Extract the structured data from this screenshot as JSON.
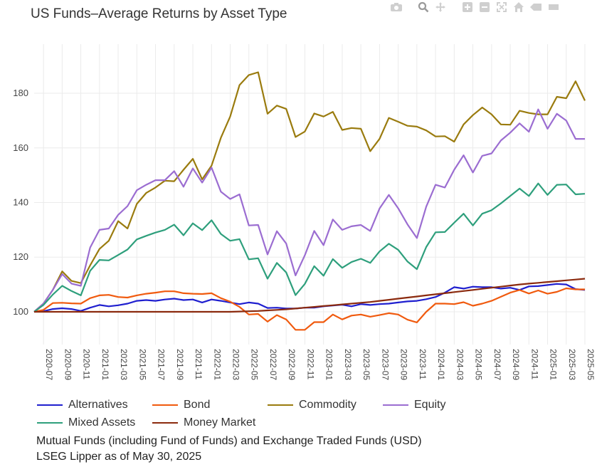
{
  "title": "US Funds–Average Returns by Asset Type",
  "modebar": {
    "icons": [
      "camera-icon",
      "zoom-icon",
      "pan-icon",
      "zoom-in-icon",
      "zoom-out-icon",
      "autoscale-icon",
      "home-icon",
      "spike-lines-icon",
      "hover-closest-icon",
      "hover-compare-icon"
    ]
  },
  "footer": {
    "line1": "Mutual Funds (including Fund of Funds) and Exchange Traded Funds (USD)",
    "line2": "LSEG Lipper as of May 30, 2025"
  },
  "chart_data": {
    "type": "line",
    "title": "US Funds–Average Returns by Asset Type",
    "xlabel": "",
    "ylabel": "",
    "ylim": [
      88,
      198
    ],
    "yticks": [
      100,
      120,
      140,
      160,
      180
    ],
    "grid": true,
    "legend_position": "bottom",
    "x": [
      "2020-06",
      "2020-07",
      "2020-08",
      "2020-09",
      "2020-10",
      "2020-11",
      "2020-12",
      "2021-01",
      "2021-02",
      "2021-03",
      "2021-04",
      "2021-05",
      "2021-06",
      "2021-07",
      "2021-08",
      "2021-09",
      "2021-10",
      "2021-11",
      "2021-12",
      "2022-01",
      "2022-02",
      "2022-03",
      "2022-04",
      "2022-05",
      "2022-06",
      "2022-07",
      "2022-08",
      "2022-09",
      "2022-10",
      "2022-11",
      "2022-12",
      "2023-01",
      "2023-02",
      "2023-03",
      "2023-04",
      "2023-05",
      "2023-06",
      "2023-07",
      "2023-08",
      "2023-09",
      "2023-10",
      "2023-11",
      "2023-12",
      "2024-01",
      "2024-02",
      "2024-03",
      "2024-04",
      "2024-05",
      "2024-06",
      "2024-07",
      "2024-08",
      "2024-09",
      "2024-10",
      "2024-11",
      "2024-12",
      "2025-01",
      "2025-02",
      "2025-03",
      "2025-04",
      "2025-05"
    ],
    "xticks": [
      "2020-07",
      "2020-09",
      "2020-11",
      "2021-01",
      "2021-03",
      "2021-05",
      "2021-07",
      "2021-09",
      "2021-11",
      "2022-01",
      "2022-03",
      "2022-05",
      "2022-07",
      "2022-09",
      "2022-11",
      "2023-01",
      "2023-03",
      "2023-05",
      "2023-07",
      "2023-09",
      "2023-11",
      "2024-01",
      "2024-03",
      "2024-05",
      "2024-07",
      "2024-09",
      "2024-11",
      "2025-01",
      "2025-03",
      "2025-05"
    ],
    "series": [
      {
        "name": "Alternatives",
        "color": "#1f1fcf",
        "values": [
          100,
          100.2,
          101,
          101.3,
          101,
          100.3,
          101.5,
          102.5,
          102,
          102.4,
          103,
          104,
          104.3,
          104,
          104.5,
          104.8,
          104.3,
          104.5,
          103.4,
          104.5,
          104,
          103.4,
          102.8,
          103.4,
          103,
          101.4,
          101.5,
          101.2,
          101.2,
          101.5,
          101.5,
          102,
          102.3,
          102.6,
          102,
          102.8,
          102.5,
          102.8,
          103,
          103.4,
          103.8,
          104,
          104.6,
          105.4,
          107,
          109,
          108.5,
          109.2,
          109,
          109,
          108.5,
          108.8,
          108,
          109.3,
          109.4,
          109.8,
          110.2,
          110,
          108.3,
          108
        ]
      },
      {
        "name": "Bond",
        "color": "#f05a0e",
        "values": [
          100,
          100.7,
          103.2,
          103.3,
          103.1,
          103,
          105,
          106,
          106.2,
          105.4,
          105.2,
          106,
          106.6,
          107,
          107.5,
          107.5,
          106.8,
          106.6,
          106.5,
          106.8,
          105,
          103.7,
          101.8,
          99,
          99.2,
          96.4,
          98.8,
          97.2,
          93.4,
          93.4,
          96.2,
          96.2,
          99,
          97.2,
          98.6,
          99,
          98.2,
          98.8,
          99.5,
          99,
          97.1,
          96.1,
          100,
          103,
          103,
          102.8,
          103.5,
          102.2,
          103,
          104,
          105.5,
          107,
          108,
          106.7,
          107.8,
          106.6,
          107.3,
          108.6,
          108.2,
          108.2
        ]
      },
      {
        "name": "Commodity",
        "color": "#9a7b0e",
        "values": [
          100,
          103,
          108,
          114.8,
          111.3,
          110.5,
          117,
          123,
          126,
          133.2,
          130.5,
          139.5,
          143.5,
          145.5,
          148,
          147.8,
          152,
          156,
          148.5,
          153.5,
          163.7,
          171.5,
          183,
          186.7,
          187.7,
          172.5,
          175.5,
          174.3,
          164,
          166,
          172.6,
          171.5,
          173.2,
          166.6,
          167.3,
          167,
          158.8,
          163.3,
          171,
          169.6,
          168.1,
          167.8,
          166.4,
          164.2,
          164.3,
          162.3,
          168.6,
          172,
          174.8,
          172.3,
          168.6,
          168.5,
          173.6,
          172.8,
          172.3,
          172.3,
          178.7,
          178.2,
          184.4,
          177.3
        ]
      },
      {
        "name": "Equity",
        "color": "#9b6dd1",
        "values": [
          100,
          103,
          108,
          113.8,
          110.3,
          109.5,
          123.5,
          130,
          130.5,
          135.5,
          138.7,
          144.5,
          146.5,
          148.2,
          148.2,
          151.5,
          145.8,
          152.5,
          147.3,
          152.8,
          144,
          141.3,
          143,
          131.6,
          131.8,
          121,
          129.5,
          125,
          113.3,
          120.7,
          129.6,
          124.4,
          133.8,
          130,
          131.3,
          131.8,
          129.6,
          137.8,
          142.8,
          137.9,
          132,
          127,
          138.5,
          146.5,
          145.5,
          152,
          157.3,
          151,
          157.1,
          158,
          162.7,
          165.6,
          169,
          165.9,
          174.1,
          167,
          172.5,
          170,
          163.3,
          163.3
        ]
      },
      {
        "name": "Mixed Assets",
        "color": "#2e9f7c",
        "values": [
          100,
          102.5,
          106.3,
          109.5,
          107.6,
          106,
          115,
          119,
          118.8,
          120.8,
          122.8,
          126.5,
          127.8,
          129,
          130,
          131.9,
          128,
          132.4,
          129.9,
          133.5,
          128.5,
          126,
          126.6,
          119.2,
          119.6,
          112.1,
          117.9,
          114.4,
          106.1,
          110.2,
          116.7,
          113.2,
          119.3,
          116.1,
          118.2,
          119.4,
          117.9,
          122.1,
          124.9,
          122.7,
          118.4,
          115.6,
          123.7,
          129.1,
          129.2,
          132.6,
          135.9,
          131.6,
          135.9,
          137.2,
          139.7,
          142.4,
          145.1,
          142.4,
          147,
          142.8,
          146.5,
          146.6,
          143,
          143.2
        ]
      },
      {
        "name": "Money Market",
        "color": "#8b2a0e",
        "values": [
          100,
          100,
          100,
          100,
          100,
          100,
          100,
          100,
          100,
          100,
          100,
          100,
          100,
          100,
          100,
          100,
          100,
          100,
          100,
          100,
          100,
          100,
          100.1,
          100.2,
          100.3,
          100.5,
          100.7,
          100.9,
          101.2,
          101.5,
          101.8,
          102.1,
          102.4,
          102.7,
          103,
          103.3,
          103.6,
          104,
          104.4,
          104.8,
          105.2,
          105.6,
          106,
          106.4,
          106.8,
          107.2,
          107.6,
          108,
          108.4,
          108.8,
          109.2,
          109.6,
          110,
          110.3,
          110.6,
          110.9,
          111.2,
          111.5,
          111.8,
          112.1
        ]
      }
    ]
  }
}
